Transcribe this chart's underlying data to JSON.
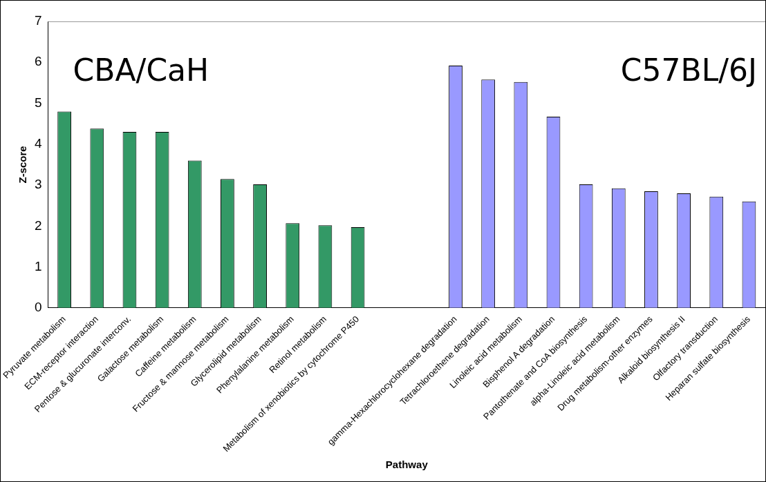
{
  "chart_data": {
    "type": "bar",
    "xlabel": "Pathway",
    "ylabel": "Z-score",
    "categories": [
      "Pyruvate metabolism",
      "ECM-receptor interaction",
      "Pentose & glucuronate interconv.",
      "Galactose metabolism",
      "Caffeine metabolism",
      "Fructose & mannose metabolism",
      "Glycerolipid metabolism",
      "Phenylalanine metabolism",
      "Retinol metabolism",
      "Metabolism of xenobiotics by cytochrome P450",
      null,
      null,
      "gamma-Hexachlorocyclohexane degradation",
      "Tetrachloroethene degradation",
      "Linoleic acid metabolism",
      "Bisphenol A degradation",
      "Pantothenate and CoA biosynthesis",
      "alpha-Linoleic acid metabolism",
      "Drug metabolism-other enzymes",
      "Alkaloid biosynthesis II",
      "Olfactory transduction",
      "Heparan sulfate biosynthesis"
    ],
    "series": [
      {
        "color": "#339966",
        "values": [
          4.8,
          4.38,
          4.3,
          4.3,
          3.6,
          3.15,
          3.02,
          2.07,
          2.02,
          1.97,
          null,
          null,
          null,
          null,
          null,
          null,
          null,
          null,
          null,
          null,
          null,
          null
        ]
      },
      {
        "color": "#9999ff",
        "values": [
          null,
          null,
          null,
          null,
          null,
          null,
          null,
          null,
          null,
          null,
          null,
          null,
          5.92,
          5.58,
          5.52,
          4.67,
          3.02,
          2.92,
          2.85,
          2.8,
          2.72,
          2.6
        ]
      }
    ],
    "ylim": [
      0,
      7
    ],
    "yticks": [
      0,
      1,
      2,
      3,
      4,
      5,
      6,
      7
    ],
    "annotations": [
      "CBA/CaH",
      "C57BL/6J"
    ]
  }
}
